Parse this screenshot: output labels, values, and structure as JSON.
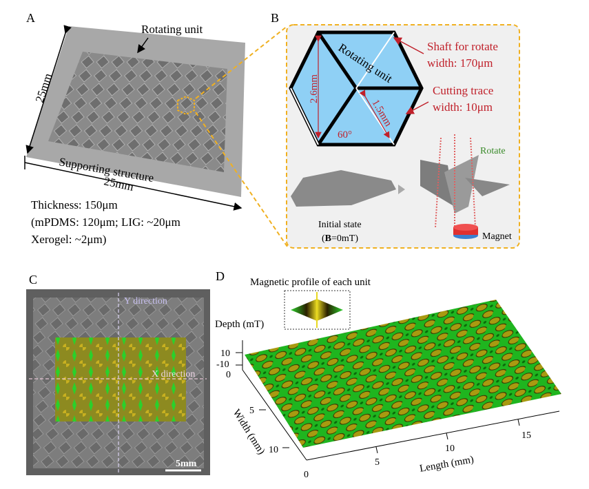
{
  "panel_a": {
    "label": "A",
    "rotating_unit": "Rotating unit",
    "supporting_structure": "Supporting structure",
    "side_length_vertical": "25mm",
    "side_length_horizontal": "25mm",
    "thickness_lines": [
      "Thickness: 150μm",
      "(mPDMS: 120μm; LIG: ~20μm",
      "Xerogel: ~2μm)"
    ]
  },
  "panel_b": {
    "label": "B",
    "rotating_unit": "Rotating unit",
    "shaft_lines": [
      "Shaft for rotate",
      "width: 170μm"
    ],
    "cutting_lines": [
      "Cutting trace",
      "width: 10μm"
    ],
    "dim_height": "2.6mm",
    "dim_edge": "1.5mm",
    "angle": "60°",
    "initial_state": "Initial state",
    "initial_field_prefix": "(",
    "initial_field_bold": "B",
    "initial_field_suffix": "=0mT)",
    "rotate": "Rotate",
    "magnet": "Magnet"
  },
  "panel_c": {
    "label": "C",
    "y_direction": "Y direction",
    "x_direction": "X direction",
    "scale_bar": "5mm"
  },
  "panel_d": {
    "label": "D",
    "profile_title": "Magnetic profile of each unit",
    "z_label": "Depth (mT)",
    "z_ticks": [
      "10",
      "-10",
      "0"
    ],
    "width_label": "Width (mm)",
    "width_ticks": [
      "5",
      "10"
    ],
    "length_label": "Length (mm)",
    "length_ticks": [
      "0",
      "5",
      "10",
      "15"
    ]
  },
  "colors": {
    "accent_orange": "#f0b020",
    "annotation_red": "#c0202a",
    "unit_blue": "#8fd0f5",
    "field_green": "#22c52a",
    "field_yellow": "#a89a10"
  }
}
